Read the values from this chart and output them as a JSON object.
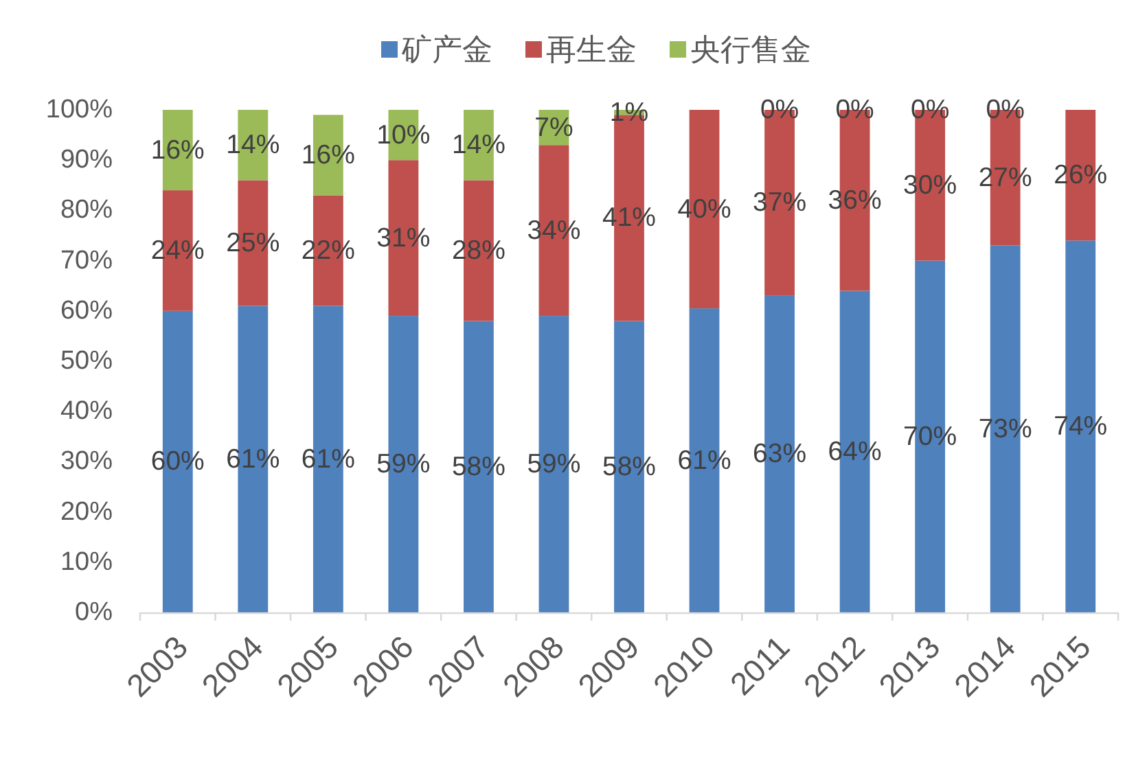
{
  "chart_data": {
    "type": "bar",
    "stacked": true,
    "categories": [
      "2003",
      "2004",
      "2005",
      "2006",
      "2007",
      "2008",
      "2009",
      "2010",
      "2011",
      "2012",
      "2013",
      "2014",
      "2015"
    ],
    "series": [
      {
        "name": "矿产金",
        "color": "#4f81bd",
        "values": [
          60,
          61,
          61,
          59,
          58,
          59,
          58,
          60.5,
          63,
          64,
          70,
          73,
          74
        ],
        "value_labels": [
          "60%",
          "61%",
          "61%",
          "59%",
          "58%",
          "59%",
          "58%",
          "61%",
          "63%",
          "64%",
          "70%",
          "73%",
          "74%"
        ]
      },
      {
        "name": "再生金",
        "color": "#c0504d",
        "values": [
          24,
          25,
          22,
          31,
          28,
          34,
          41,
          39.5,
          37,
          36,
          30,
          27,
          26
        ],
        "value_labels": [
          "24%",
          "25%",
          "22%",
          "31%",
          "28%",
          "34%",
          "41%",
          "40%",
          "37%",
          "36%",
          "30%",
          "27%",
          "26%"
        ]
      },
      {
        "name": "央行售金",
        "color": "#9bbb59",
        "values": [
          16,
          14,
          16,
          10,
          14,
          7,
          1,
          null,
          0,
          0,
          0,
          0,
          null
        ],
        "value_labels": [
          "16%",
          "14%",
          "16%",
          "10%",
          "14%",
          "7%",
          "1%",
          null,
          "0%",
          "0%",
          "0%",
          "0%",
          null
        ]
      }
    ],
    "ylim": [
      0,
      100
    ],
    "yticks": [
      {
        "value": 0,
        "label": "0%"
      },
      {
        "value": 10,
        "label": "10%"
      },
      {
        "value": 20,
        "label": "20%"
      },
      {
        "value": 30,
        "label": "30%"
      },
      {
        "value": 40,
        "label": "40%"
      },
      {
        "value": 50,
        "label": "50%"
      },
      {
        "value": 60,
        "label": "60%"
      },
      {
        "value": 70,
        "label": "70%"
      },
      {
        "value": 80,
        "label": "80%"
      },
      {
        "value": 90,
        "label": "90%"
      },
      {
        "value": 100,
        "label": "100%"
      }
    ],
    "legend": "top"
  }
}
